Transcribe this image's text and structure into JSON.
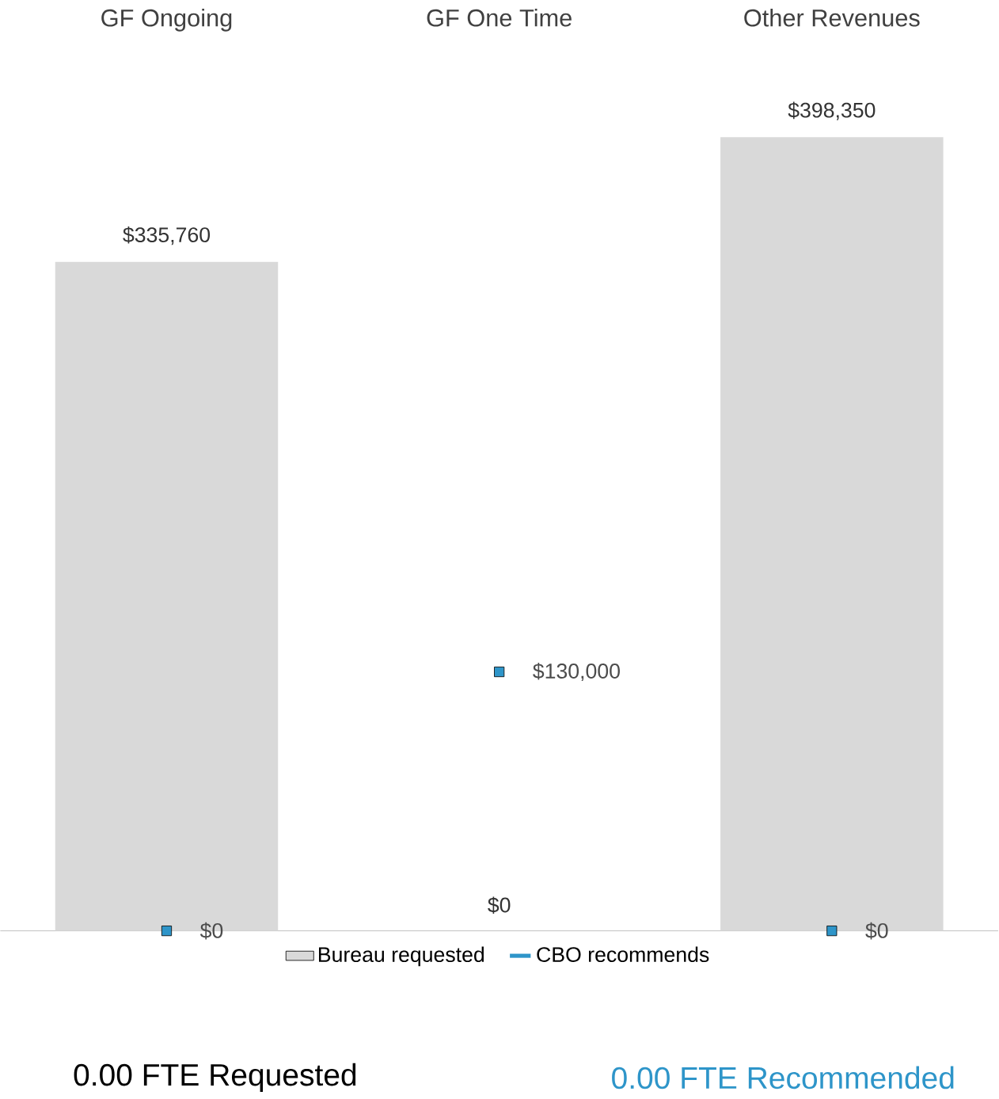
{
  "chart_data": {
    "type": "bar",
    "categories": [
      "GF Ongoing",
      "GF One Time",
      "Other Revenues"
    ],
    "series": [
      {
        "name": "Bureau requested",
        "color": "#d9d9d9",
        "values": [
          335760,
          0,
          398350
        ],
        "value_labels": [
          "$335,760",
          "$0",
          "$398,350"
        ]
      },
      {
        "name": "CBO recommends",
        "type": "scatter",
        "color": "#2e95c9",
        "values": [
          0,
          130000,
          0
        ],
        "value_labels": [
          "$0",
          "$130,000",
          "$0"
        ]
      }
    ],
    "legend": "bottom",
    "annotations": [
      "0.00 FTE Requested",
      "0.00 FTE Recommended"
    ]
  }
}
